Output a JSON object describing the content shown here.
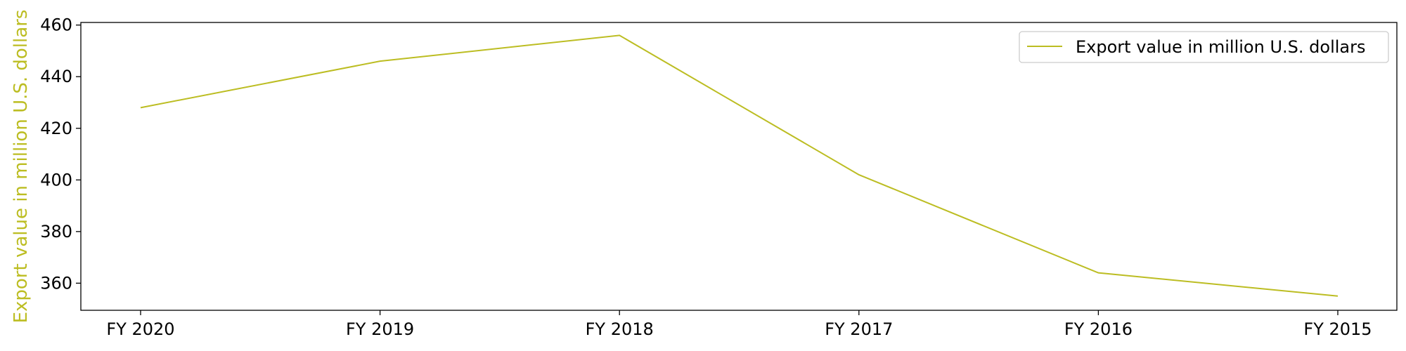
{
  "chart_data": {
    "type": "line",
    "categories": [
      "FY 2020",
      "FY 2019",
      "FY 2018",
      "FY 2017",
      "FY 2016",
      "FY 2015"
    ],
    "series": [
      {
        "name": "Export value in million U.S. dollars",
        "values": [
          428,
          446,
          456,
          402,
          364,
          355
        ],
        "color": "#bcbd22"
      }
    ],
    "title": "",
    "xlabel": "",
    "ylabel": "Export value in million U.S. dollars",
    "ylabel_color": "#bcbd22",
    "ylim": [
      349.5,
      461
    ],
    "yticks": [
      360,
      380,
      400,
      420,
      440,
      460
    ],
    "grid": false,
    "legend_position": "top-right"
  }
}
